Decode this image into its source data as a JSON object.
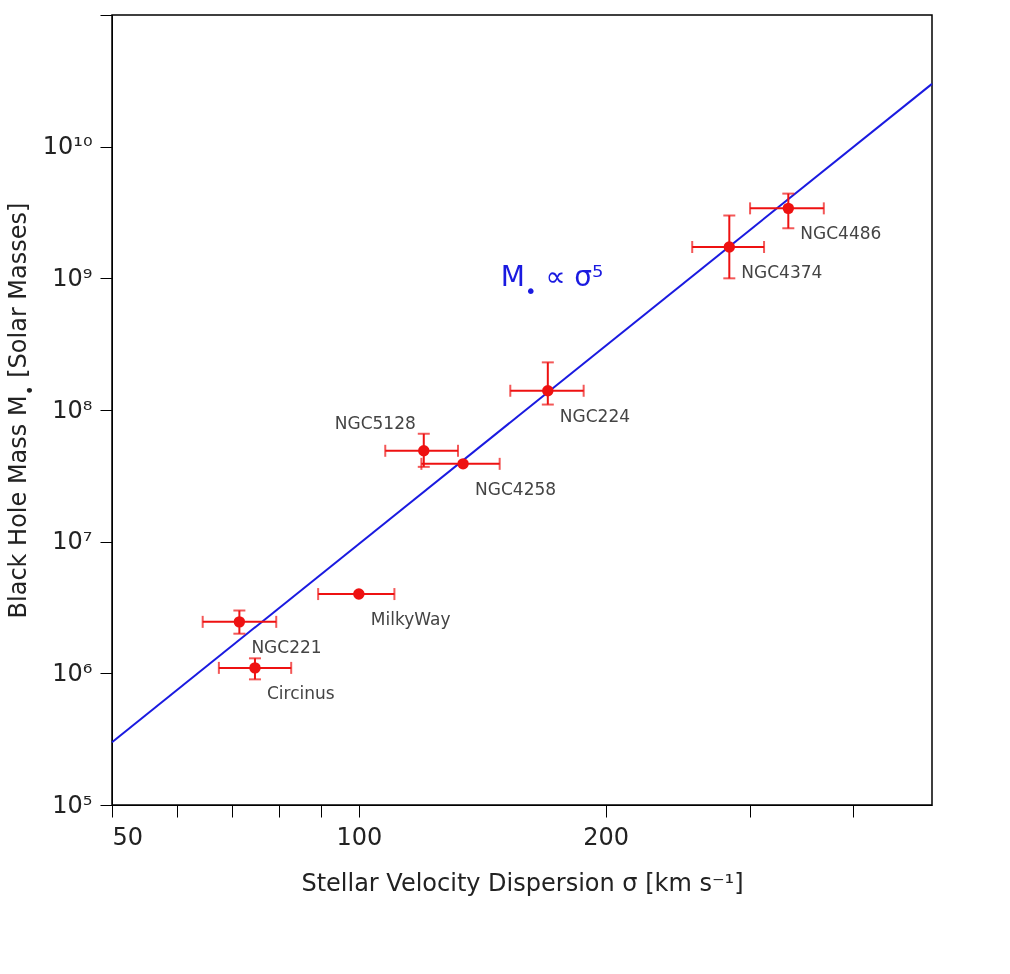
{
  "chart_data": {
    "type": "scatter",
    "xlabel": "Stellar Velocity Dispersion σ [km s⁻¹]",
    "ylabel": "Black Hole Mass M$_{•}$ [Solar Masses]",
    "log": "xy",
    "grid": false,
    "xlim": [
      50,
      500
    ],
    "ylim": [
      100000,
      100000000000
    ],
    "xticks": [
      50,
      {
        "value": 60,
        "label": null
      },
      {
        "value": 70,
        "label": null
      },
      {
        "value": 80,
        "label": null
      },
      {
        "value": 90,
        "label": null
      },
      100,
      200,
      {
        "value": 300,
        "label": null
      },
      {
        "value": 400,
        "label": null
      }
    ],
    "yticks": [
      {
        "value": 100000,
        "label": "10⁵"
      },
      {
        "value": 1000000,
        "label": "10⁶"
      },
      {
        "value": 10000000,
        "label": "10⁷"
      },
      {
        "value": 100000000,
        "label": "10⁸"
      },
      {
        "value": 1000000000,
        "label": "10⁹"
      },
      {
        "value": 10000000000,
        "label": "10¹⁰"
      },
      {
        "value": 100000000000,
        "label": null
      }
    ],
    "series": [
      {
        "type": "line",
        "name": "M$_{•}$ ∝ σ⁵",
        "color": "#1a1ae0",
        "x": [
          50,
          500
        ],
        "values": [
          300000,
          30000000000
        ],
        "marker": "none",
        "line_style": "solid"
      },
      {
        "color": "#ee1111",
        "marker": "circle",
        "x": [
          71.5,
          74.7,
          100,
          120,
          134,
          170,
          283,
          334
        ],
        "values": [
          2460000,
          1100000,
          4000000,
          49000000,
          39000000,
          140000000,
          1730000000,
          3400000000
        ],
        "errors": [
          [
            2000000,
            3000000
          ],
          [
            900000,
            1300000
          ],
          null,
          [
            37000000,
            66000000
          ],
          null,
          [
            110000000,
            230000000
          ],
          [
            1000000000,
            3000000000
          ],
          [
            2400000000,
            4400000000
          ]
        ],
        "xerrors": [
          [
            64.5,
            79.3
          ],
          [
            67.5,
            82.7
          ],
          [
            89.2,
            110.5
          ],
          [
            107.7,
            132.1
          ],
          [
            119.2,
            148.5
          ],
          [
            153,
            188
          ],
          [
            255,
            312
          ],
          [
            300,
            369
          ]
        ]
      }
    ],
    "annotations": [
      {
        "text": "NGC221",
        "x": 71.5,
        "y": 2460000
      },
      {
        "text": "Circinus",
        "x": 74.7,
        "y": 1100000
      },
      {
        "text": "MilkyWay",
        "x": 100,
        "y": 4000000
      },
      {
        "text": "NGC5128",
        "x": 120,
        "y": 49000000
      },
      {
        "text": "NGC4258",
        "x": 134,
        "y": 39000000
      },
      {
        "text": "NGC224",
        "x": 170,
        "y": 140000000
      },
      {
        "text": "NGC4374",
        "x": 283,
        "y": 1730000000
      },
      {
        "text": "NGC4486",
        "x": 334,
        "y": 3400000000
      }
    ]
  }
}
